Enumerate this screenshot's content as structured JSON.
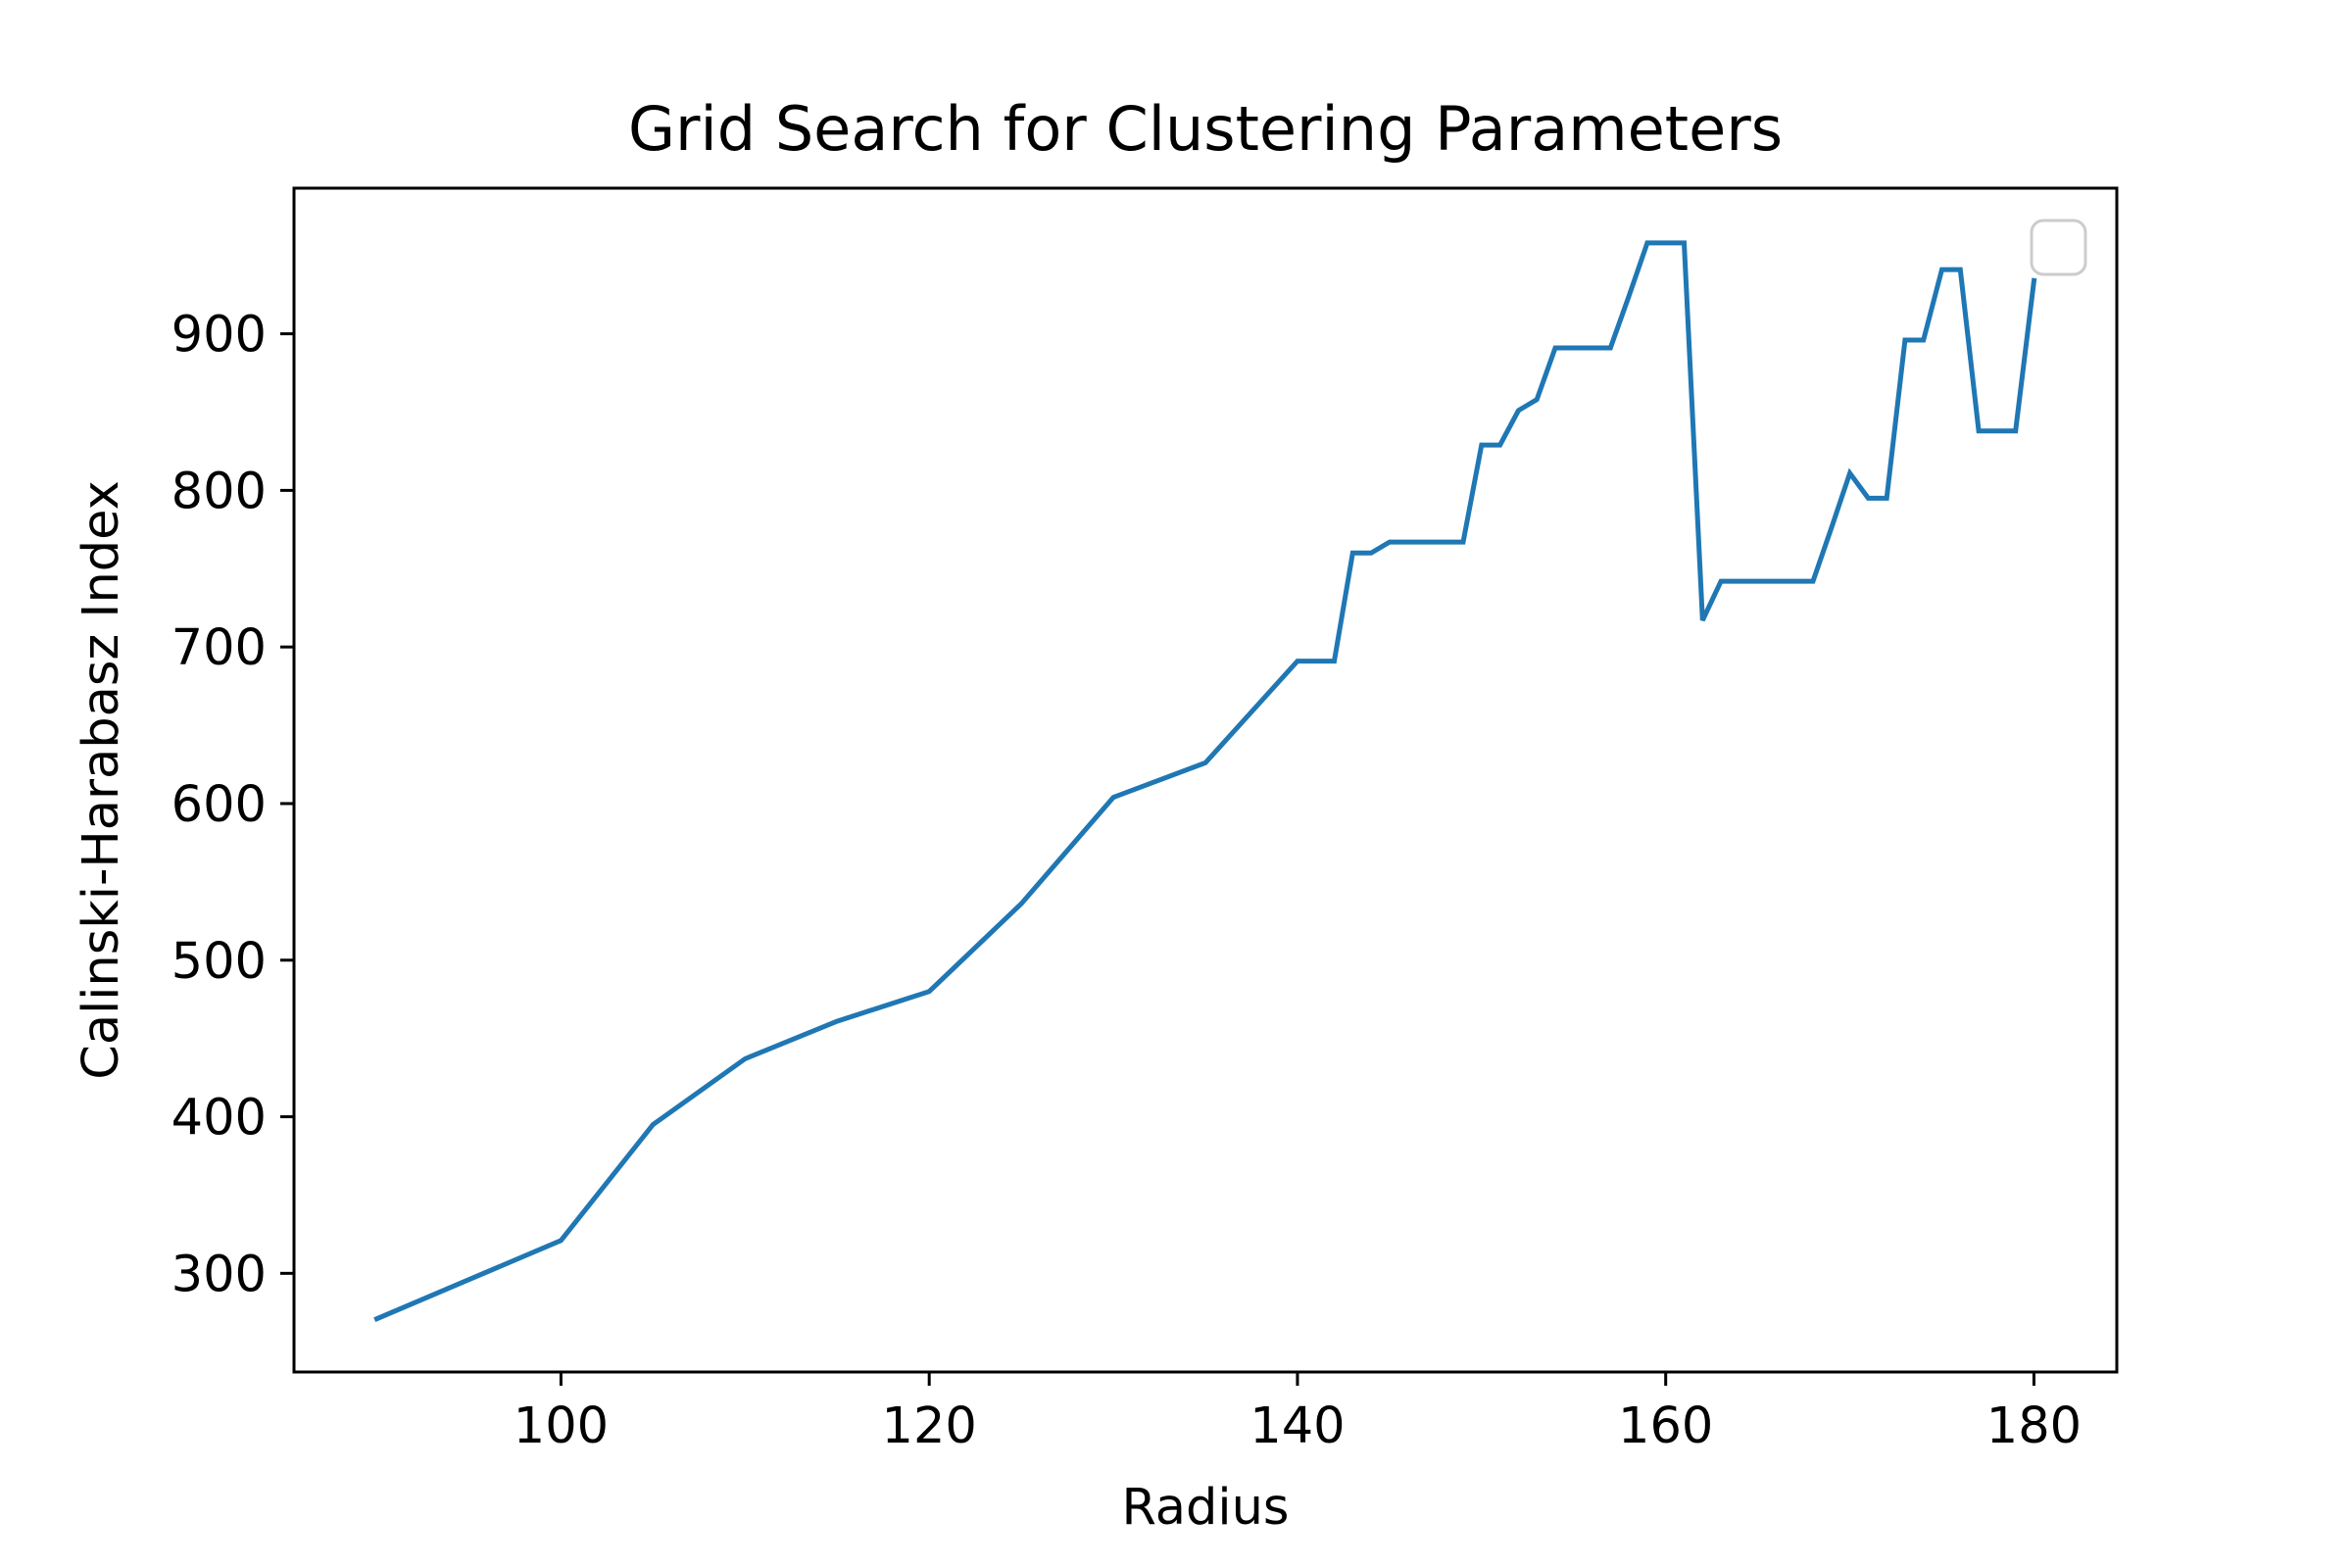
{
  "chart_data": {
    "type": "line",
    "title": "Grid Search for Clustering Parameters",
    "xlabel": "Radius",
    "ylabel": "Calinski-Harabasz Index",
    "xlim": [
      85.5,
      184.5
    ],
    "ylim": [
      237,
      993
    ],
    "xticks": [
      100,
      120,
      140,
      160,
      180
    ],
    "yticks": [
      300,
      400,
      500,
      600,
      700,
      800,
      900
    ],
    "grid": false,
    "legend": {
      "placement": "top-right",
      "entries": []
    },
    "series": [
      {
        "color": "#1f77b4",
        "x": [
          90,
          95,
          100,
          105,
          110,
          115,
          120,
          125,
          130,
          135,
          140,
          141,
          142,
          143,
          144,
          145,
          146,
          147,
          148,
          149,
          150,
          151,
          152,
          153,
          154,
          155,
          156,
          157,
          158,
          159,
          160,
          161,
          162,
          163,
          164,
          165,
          166,
          167,
          168,
          169,
          170,
          171,
          172,
          173,
          174,
          175,
          176,
          177,
          178,
          179,
          180
        ],
        "y": [
          271,
          296,
          321,
          395,
          437,
          461,
          480,
          536,
          604,
          626,
          691,
          691,
          691,
          760,
          760,
          767,
          767,
          767,
          767,
          767,
          829,
          829,
          851,
          858,
          891,
          891,
          891,
          891,
          924,
          958,
          958,
          958,
          717,
          742,
          742,
          742,
          742,
          742,
          742,
          776,
          811,
          795,
          795,
          896,
          896,
          941,
          941,
          838,
          838,
          838,
          934
        ]
      }
    ]
  }
}
